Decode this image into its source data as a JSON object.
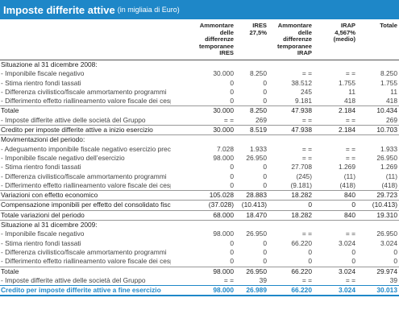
{
  "title": "Imposte differite attive",
  "subtitle": "(in migliaia di Euro)",
  "columns": [
    "Ammontare\ndelle\ndifferenze\ntemporanee\nIRES",
    "IRES\n27,5%",
    "Ammontare\ndelle\ndifferenze\ntemporanee\nIRAP",
    "IRAP\n4,567%\n(medio)",
    "Totale"
  ],
  "rows": [
    {
      "type": "section",
      "label": "Situazione al 31 dicembre 2008:",
      "values": [
        "",
        "",
        "",
        "",
        ""
      ]
    },
    {
      "type": "item",
      "label": "- Imponibile fiscale negativo",
      "values": [
        "30.000",
        "8.250",
        "= =",
        "= =",
        "8.250"
      ]
    },
    {
      "type": "item",
      "label": "- Stima rientro fondi tassati",
      "values": [
        "0",
        "0",
        "38.512",
        "1.755",
        "1.755"
      ]
    },
    {
      "type": "item",
      "label": "- Differenza civilistico/fiscale ammortamento programmi",
      "values": [
        "0",
        "0",
        "245",
        "11",
        "11"
      ]
    },
    {
      "type": "item",
      "label": "- Differimento effetto riallineamento valore fiscale dei cespiti",
      "values": [
        "0",
        "0",
        "9.181",
        "418",
        "418"
      ]
    },
    {
      "type": "sep",
      "label": "Totale",
      "values": [
        "30.000",
        "8.250",
        "47.938",
        "2.184",
        "10.434"
      ]
    },
    {
      "type": "item",
      "label": "- Imposte differite attive delle società del Gruppo",
      "values": [
        "= =",
        "269",
        "= =",
        "= =",
        "269"
      ]
    },
    {
      "type": "sep",
      "label": "Credito per imposte differite attive a inizio esercizio",
      "values": [
        "30.000",
        "8.519",
        "47.938",
        "2.184",
        "10.703"
      ]
    },
    {
      "type": "sep",
      "label": "Movimentazioni del periodo:",
      "values": [
        "",
        "",
        "",
        "",
        ""
      ]
    },
    {
      "type": "item",
      "label": "- Adeguamento imponibile fiscale negativo esercizio precedente",
      "values": [
        "7.028",
        "1.933",
        "= =",
        "= =",
        "1.933"
      ]
    },
    {
      "type": "item",
      "label": "- Imponibile fiscale negativo dell’esercizio",
      "values": [
        "98.000",
        "26.950",
        "= =",
        "= =",
        "26.950"
      ]
    },
    {
      "type": "item",
      "label": "- Stima rientro fondi tassati",
      "values": [
        "0",
        "0",
        "27.708",
        "1.269",
        "1.269"
      ]
    },
    {
      "type": "item",
      "label": "- Differenza civilistico/fiscale ammortamento programmi",
      "values": [
        "0",
        "0",
        "(245)",
        "(11)",
        "(11)"
      ]
    },
    {
      "type": "item",
      "label": "- Differimento effetto riallineamento valore fiscale dei cespiti",
      "values": [
        "0",
        "0",
        "(9.181)",
        "(418)",
        "(418)"
      ]
    },
    {
      "type": "sep",
      "label": "Variazioni con effetto economico",
      "values": [
        "105.028",
        "28.883",
        "18.282",
        "840",
        "29.723"
      ]
    },
    {
      "type": "sep",
      "label": "Compensazione imponibili per effetto del consolidato fiscale",
      "values": [
        "(37.028)",
        "(10.413)",
        "0",
        "0",
        "(10.413)"
      ]
    },
    {
      "type": "sep",
      "label": "Totale variazioni del periodo",
      "values": [
        "68.000",
        "18.470",
        "18.282",
        "840",
        "19.310"
      ]
    },
    {
      "type": "sep",
      "label": "Situazione al 31 dicembre 2009:",
      "values": [
        "",
        "",
        "",
        "",
        ""
      ]
    },
    {
      "type": "item",
      "label": "- Imponibile fiscale negativo",
      "values": [
        "98.000",
        "26.950",
        "= =",
        "= =",
        "26.950"
      ]
    },
    {
      "type": "item",
      "label": "- Stima rientro fondi tassati",
      "values": [
        "0",
        "0",
        "66.220",
        "3.024",
        "3.024"
      ]
    },
    {
      "type": "item",
      "label": "- Differenza civilistico/fiscale ammortamento programmi",
      "values": [
        "0",
        "0",
        "0",
        "0",
        "0"
      ]
    },
    {
      "type": "item",
      "label": "- Differimento effetto riallineamento valore fiscale dei cespiti",
      "values": [
        "0",
        "0",
        "0",
        "0",
        "0"
      ]
    },
    {
      "type": "sep",
      "label": "Totale",
      "values": [
        "98.000",
        "26.950",
        "66.220",
        "3.024",
        "29.974"
      ]
    },
    {
      "type": "item",
      "label": "- Imposte differite attive delle società del Gruppo",
      "values": [
        "= =",
        "39",
        "= =",
        "= =",
        "39"
      ]
    },
    {
      "type": "final",
      "label": "Credito per imposte differite attive a fine esercizio",
      "values": [
        "98.000",
        "26.989",
        "66.220",
        "3.024",
        "30.013"
      ]
    }
  ],
  "colors": {
    "accent": "#1e87c8"
  }
}
